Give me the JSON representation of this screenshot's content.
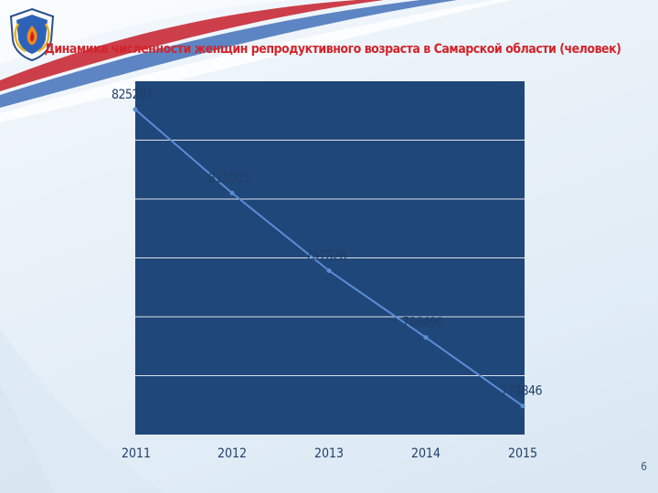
{
  "slide": {
    "title": "Динамика численности женщин репродуктивного возраста в Самарской области (человек)",
    "page_number": "6"
  },
  "colors": {
    "plot_background": "#20477a",
    "line": "#5b8dd6",
    "gridline": "#ffffff",
    "label": "#1f3e66",
    "title": "#d2242b"
  },
  "chart_data": {
    "type": "line",
    "categories": [
      "2011",
      "2012",
      "2013",
      "2014",
      "2015"
    ],
    "series": [
      {
        "values": [
          825207,
          811005,
          797828,
          786490,
          774846
        ],
        "labels": [
          "825207",
          "811005",
          "797828",
          "786490",
          "774846"
        ]
      }
    ],
    "title": "Динамика численности женщин репродуктивного возраста в Самарской области (человек)",
    "xlabel": "",
    "ylabel": "",
    "ylim": [
      770000,
      830000
    ],
    "grid": true,
    "legend": "none"
  }
}
